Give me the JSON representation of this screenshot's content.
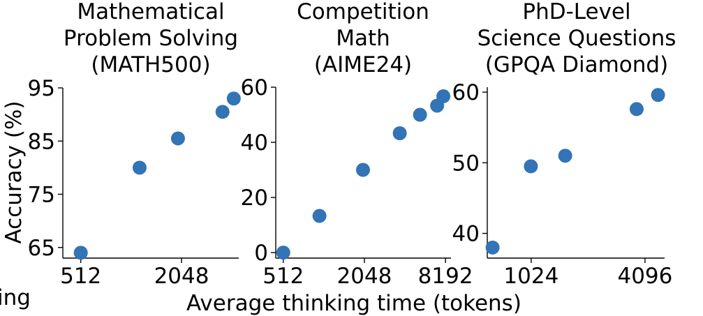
{
  "colors": {
    "point": "#3274b5",
    "axis": "#000000"
  },
  "chart_data": [
    {
      "type": "scatter",
      "title": [
        "Mathematical",
        "Problem Solving",
        "(MATH500)"
      ],
      "xscale": "log2",
      "xlim": [
        400,
        4500
      ],
      "ylim": [
        63,
        95
      ],
      "xticks": [
        512,
        2048
      ],
      "yticks": [
        65,
        75,
        85,
        95
      ],
      "xlabel": "",
      "ylabel": "Accuracy (%)",
      "points": [
        {
          "x": 512,
          "y": 64
        },
        {
          "x": 1150,
          "y": 80
        },
        {
          "x": 1950,
          "y": 85.5
        },
        {
          "x": 3600,
          "y": 90.5
        },
        {
          "x": 4200,
          "y": 93
        }
      ]
    },
    {
      "type": "scatter",
      "title": [
        "Competition",
        "Math",
        "(AIME24)"
      ],
      "xscale": "log2",
      "xlim": [
        450,
        9000
      ],
      "ylim": [
        -2,
        60
      ],
      "xticks": [
        512,
        2048,
        8192
      ],
      "yticks": [
        0,
        20,
        40,
        60
      ],
      "xlabel": "",
      "ylabel": "",
      "points": [
        {
          "x": 512,
          "y": 0
        },
        {
          "x": 950,
          "y": 13.3
        },
        {
          "x": 2000,
          "y": 30
        },
        {
          "x": 3750,
          "y": 43.3
        },
        {
          "x": 5300,
          "y": 50
        },
        {
          "x": 7100,
          "y": 53.3
        },
        {
          "x": 7900,
          "y": 56.7
        }
      ]
    },
    {
      "type": "scatter",
      "title": [
        "PhD-Level",
        "Science Questions",
        "(GPQA Diamond)"
      ],
      "xscale": "log2",
      "xlim": [
        600,
        5200
      ],
      "ylim": [
        36.5,
        60.7
      ],
      "xticks": [
        1024,
        4096
      ],
      "yticks": [
        40,
        50,
        60
      ],
      "xlabel": "",
      "ylabel": "",
      "points": [
        {
          "x": 640,
          "y": 38
        },
        {
          "x": 1020,
          "y": 49.5
        },
        {
          "x": 1550,
          "y": 51
        },
        {
          "x": 3700,
          "y": 57.6
        },
        {
          "x": 4800,
          "y": 59.6
        }
      ]
    }
  ],
  "shared_xlabel": "Average thinking time (tokens)",
  "cropped_label": "ing"
}
